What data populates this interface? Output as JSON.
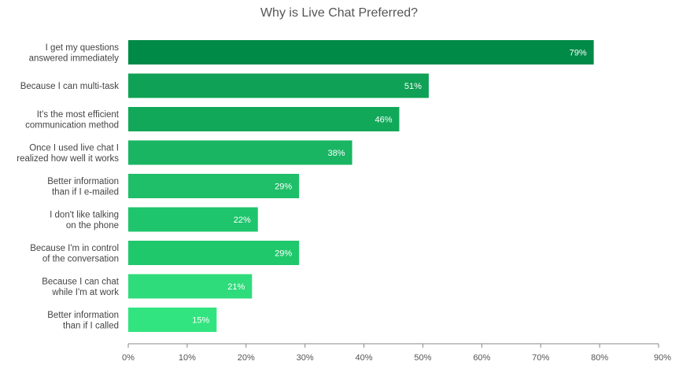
{
  "chart_data": {
    "type": "bar",
    "orientation": "horizontal",
    "title": "Why is Live Chat Preferred?",
    "xlabel": "",
    "ylabel": "",
    "categories": [
      [
        "I get my questions",
        "answered immediately"
      ],
      [
        "Because I can multi-task"
      ],
      [
        "It's the most efficient",
        "communication method"
      ],
      [
        "Once I used live chat I",
        "realized how well it works"
      ],
      [
        "Better information",
        "than if I e-mailed"
      ],
      [
        "I don't like talking",
        "on the phone"
      ],
      [
        "Because I'm in control",
        "of the conversation"
      ],
      [
        "Because I can chat",
        "while I'm at work"
      ],
      [
        "Better information",
        "than if I called"
      ]
    ],
    "values": [
      79,
      51,
      46,
      38,
      29,
      22,
      29,
      21,
      15
    ],
    "value_labels": [
      "79%",
      "51%",
      "46%",
      "38%",
      "29%",
      "22%",
      "29%",
      "21%",
      "15%"
    ],
    "xlim": [
      0,
      90
    ],
    "xticks": [
      0,
      10,
      20,
      30,
      40,
      50,
      60,
      70,
      80,
      90
    ],
    "xtick_labels": [
      "0%",
      "10%",
      "20%",
      "30%",
      "40%",
      "50%",
      "60%",
      "70%",
      "80%",
      "90%"
    ],
    "grid": false,
    "legend": "none",
    "bar_colors": [
      "#008a48",
      "#0fa155",
      "#12a85a",
      "#19b563",
      "#1fbe68",
      "#1fc56c",
      "#20c86c",
      "#2fdc7b",
      "#32e480"
    ],
    "label_color": "#ffffff",
    "axis_color": "#888888"
  }
}
